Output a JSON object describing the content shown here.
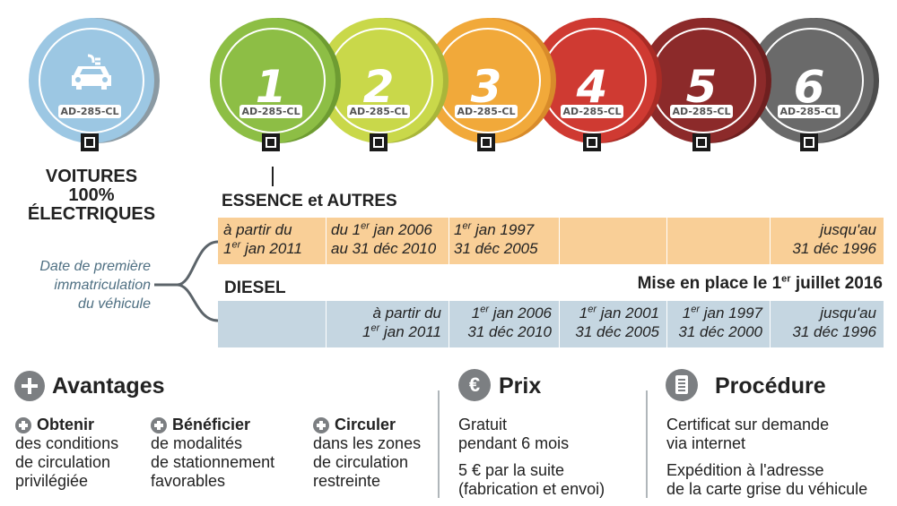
{
  "badges": {
    "electric": {
      "plate": "AD-285-CL",
      "icon": "electric-car-icon",
      "color": "#9cc7e3"
    },
    "items": [
      {
        "num": "1",
        "plate": "AD-285-CL",
        "color": "#8dbe45",
        "rim": "#6e9c32"
      },
      {
        "num": "2",
        "plate": "AD-285-CL",
        "color": "#c9d84a",
        "rim": "#a9b63a"
      },
      {
        "num": "3",
        "plate": "AD-285-CL",
        "color": "#f1a93a",
        "rim": "#d88b2a"
      },
      {
        "num": "4",
        "plate": "AD-285-CL",
        "color": "#cf3a32",
        "rim": "#a92b25"
      },
      {
        "num": "5",
        "plate": "AD-285-CL",
        "color": "#8c2a2a",
        "rim": "#6e1f1f"
      },
      {
        "num": "6",
        "plate": "AD-285-CL",
        "color": "#6a6a6a",
        "rim": "#4d4d4d"
      }
    ]
  },
  "electric_title": [
    "VOITURES",
    "100%",
    "ÉLECTRIQUES"
  ],
  "essence": {
    "title": "ESSENCE et AUTRES",
    "cells": [
      [
        "à partir du",
        "1er jan 2011"
      ],
      [
        "du 1er jan 2006",
        "au 31 déc 2010"
      ],
      [
        "1er jan 1997",
        "31 déc 2005"
      ],
      [
        "",
        ""
      ],
      [
        "",
        ""
      ],
      [
        "jusqu'au",
        "31 déc 1996"
      ]
    ]
  },
  "date_label": [
    "Date de première",
    "immatriculation",
    "du véhicule"
  ],
  "diesel": {
    "title": "DIESEL",
    "mise": "Mise en place le 1er juillet 2016",
    "cells": [
      [
        "",
        ""
      ],
      [
        "à partir du",
        "1er jan 2011"
      ],
      [
        "1er jan 2006",
        "31 déc 2010"
      ],
      [
        "1er jan 2001",
        "31 déc 2005"
      ],
      [
        "1er jan 1997",
        "31 déc 2000"
      ],
      [
        "jusqu'au",
        "31 déc 1996"
      ]
    ]
  },
  "avantages": {
    "title": "Avantages",
    "items": [
      {
        "head": "Obtenir",
        "lines": [
          "des conditions",
          "de circulation",
          "privilégiée"
        ]
      },
      {
        "head": "Bénéficier",
        "lines": [
          "de modalités",
          "de stationnement",
          "favorables"
        ]
      },
      {
        "head": "Circuler",
        "lines": [
          "dans les zones",
          "de circulation",
          "restreinte"
        ]
      }
    ]
  },
  "prix": {
    "title": "Prix",
    "icon_symbol": "€",
    "lines1": [
      "Gratuit",
      "pendant 6 mois"
    ],
    "lines2": [
      "5 € par la suite",
      "(fabrication et envoi)"
    ]
  },
  "procedure": {
    "title": "Procédure",
    "lines1": [
      "Certificat sur demande",
      "via internet"
    ],
    "lines2": [
      "Expédition à l'adresse",
      "de la carte grise du véhicule"
    ]
  },
  "colors": {
    "essence_band": "#f9cf97",
    "diesel_band": "#c5d6e1",
    "label_blue": "#4e6f82",
    "icon_grey": "#7c7f82"
  }
}
